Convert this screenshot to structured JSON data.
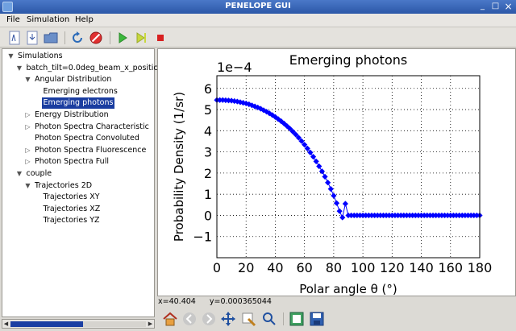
{
  "window": {
    "title": "PENELOPE GUI",
    "minimize": "_",
    "maximize": "□",
    "close": "×"
  },
  "menu": [
    "File",
    "Simulation",
    "Help"
  ],
  "tree": [
    {
      "label": "Simulations",
      "arrow": "▼",
      "indent": 0
    },
    {
      "label": "batch_tilt=0.0deg_beam_x_positic",
      "arrow": "▼",
      "indent": 1
    },
    {
      "label": "Angular Distribution",
      "arrow": "▼",
      "indent": 2
    },
    {
      "label": "Emerging electrons",
      "arrow": "",
      "indent": 3
    },
    {
      "label": "Emerging photons",
      "arrow": "",
      "indent": 3,
      "selected": true
    },
    {
      "label": "Energy Distribution",
      "arrow": "▷",
      "indent": 2
    },
    {
      "label": "Photon Spectra Characteristic",
      "arrow": "▷",
      "indent": 2
    },
    {
      "label": "Photon Spectra Convoluted",
      "arrow": "",
      "indent": 2
    },
    {
      "label": "Photon Spectra Fluorescence",
      "arrow": "▷",
      "indent": 2
    },
    {
      "label": "Photon Spectra Full",
      "arrow": "▷",
      "indent": 2
    },
    {
      "label": "couple",
      "arrow": "▼",
      "indent": 1
    },
    {
      "label": "Trajectories 2D",
      "arrow": "▼",
      "indent": 2
    },
    {
      "label": "Trajectories XY",
      "arrow": "",
      "indent": 3
    },
    {
      "label": "Trajectories XZ",
      "arrow": "",
      "indent": 3
    },
    {
      "label": "Trajectories YZ",
      "arrow": "",
      "indent": 3
    }
  ],
  "status": {
    "x": "x=40.404",
    "y": "y=0.000365044"
  },
  "chart_data": {
    "type": "scatter",
    "title": "Emerging photons",
    "xlabel": "Polar angle θ (°)",
    "ylabel": "Probability Density (1/sr)",
    "offset_text": "1e−4",
    "xlim": [
      0,
      180
    ],
    "ylim": [
      -2,
      6.6
    ],
    "xticks": [
      "0",
      "20",
      "40",
      "60",
      "80",
      "100",
      "120",
      "140",
      "160",
      "180"
    ],
    "yticks": [
      "6",
      "5",
      "4",
      "3",
      "2",
      "1",
      "0",
      "−1"
    ],
    "grid": true,
    "marker": "diamond",
    "color": "#0000ff",
    "series": [
      {
        "x": [
          0,
          2,
          4,
          6,
          8,
          10,
          12,
          14,
          16,
          18,
          20,
          22,
          24,
          26,
          28,
          30,
          32,
          34,
          36,
          38,
          40,
          42,
          44,
          46,
          48,
          50,
          52,
          54,
          56,
          58,
          60,
          62,
          64,
          66,
          68,
          70,
          72,
          74,
          76,
          78,
          80,
          82,
          84,
          86,
          88,
          90,
          92,
          94,
          96,
          98,
          100,
          102,
          104,
          106,
          108,
          110,
          112,
          114,
          116,
          118,
          120,
          122,
          124,
          126,
          128,
          130,
          132,
          134,
          136,
          138,
          140,
          142,
          144,
          146,
          148,
          150,
          152,
          154,
          156,
          158,
          160,
          162,
          164,
          166,
          168,
          170,
          172,
          174,
          176,
          178,
          180
        ],
        "y": [
          5.45,
          5.45,
          5.45,
          5.44,
          5.43,
          5.42,
          5.4,
          5.38,
          5.35,
          5.32,
          5.29,
          5.25,
          5.2,
          5.15,
          5.1,
          5.04,
          4.97,
          4.9,
          4.82,
          4.74,
          4.65,
          4.55,
          4.45,
          4.34,
          4.22,
          4.1,
          3.96,
          3.82,
          3.67,
          3.51,
          3.34,
          3.16,
          2.97,
          2.77,
          2.55,
          2.32,
          2.08,
          1.83,
          1.55,
          1.25,
          0.93,
          0.58,
          0.2,
          -0.1,
          0.55,
          0,
          0,
          0,
          0,
          0,
          0,
          0,
          0,
          0,
          0,
          0,
          0,
          0,
          0,
          0,
          0,
          0,
          0,
          0,
          0,
          0,
          0,
          0,
          0,
          0,
          0,
          0,
          0,
          0,
          0,
          0,
          0,
          0,
          0,
          0,
          0,
          0,
          0,
          0,
          0,
          0,
          0,
          0,
          0,
          0,
          0
        ]
      }
    ]
  },
  "colors": {
    "accent": "#1a3da0",
    "titlebar": "#2c58a8"
  }
}
